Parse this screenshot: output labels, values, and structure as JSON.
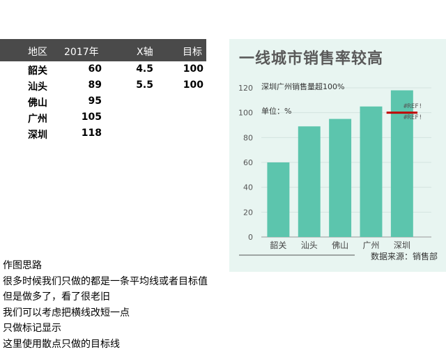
{
  "table": {
    "headers": {
      "region": "地区",
      "y2017": "2017年",
      "xaxis": "X轴",
      "target": "目标"
    },
    "rows": [
      {
        "region": "韶关",
        "y2017": "60",
        "xaxis": "4.5",
        "target": "100"
      },
      {
        "region": "汕头",
        "y2017": "89",
        "xaxis": "5.5",
        "target": "100"
      },
      {
        "region": "佛山",
        "y2017": "95",
        "xaxis": "",
        "target": ""
      },
      {
        "region": "广州",
        "y2017": "105",
        "xaxis": "",
        "target": ""
      },
      {
        "region": "深圳",
        "y2017": "118",
        "xaxis": "",
        "target": ""
      }
    ]
  },
  "chart": {
    "source": "数据来源：销售部"
  },
  "chart_data": {
    "type": "bar",
    "title": "一线城市销售率较高",
    "categories": [
      "韶关",
      "汕头",
      "佛山",
      "广州",
      "深圳"
    ],
    "values": [
      60,
      89,
      95,
      105,
      118
    ],
    "ylim": [
      0,
      120
    ],
    "yticks": [
      "0",
      "20",
      "40",
      "60",
      "80",
      "100",
      "120"
    ],
    "target": {
      "y": 100,
      "x_range": [
        4.5,
        5.5
      ]
    },
    "annotations": [
      "深圳广州销售量超100%",
      "单位：%",
      "#REF!",
      "#REF!"
    ],
    "bar_color": "#5cc5ad",
    "target_color": "#c00000",
    "grid": true
  },
  "notes": [
    "作图思路",
    "很多时候我们只做的都是一条平均线或者目标值",
    "但是做多了，看了很老旧",
    "我们可以考虑把横线改短一点",
    "只做标记显示",
    "这里使用散点只做的目标线"
  ]
}
